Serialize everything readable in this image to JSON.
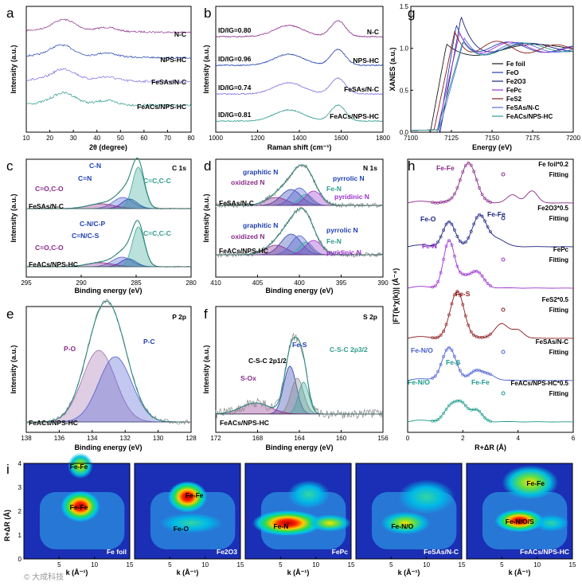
{
  "watermark": "© 大成科技",
  "colors": {
    "teal": "#2e9c8e",
    "blue": "#1f3fb0",
    "purple": "#8a2b8a",
    "violet": "#9b30d0",
    "darkred": "#8b1a1a",
    "navy": "#1a237e",
    "cyan": "#0a9a9a",
    "gray": "#777777"
  },
  "chart_data": [
    {
      "panel": "a",
      "type": "line",
      "xlabel": "2θ (degree)",
      "ylabel": "Intensity (a.u.)",
      "xlim": [
        10,
        80
      ],
      "xticks": [
        10,
        20,
        30,
        40,
        50,
        60,
        70,
        80
      ],
      "series": [
        {
          "name": "N-C",
          "color": "#8a2b8a",
          "offset": 3.0,
          "peak": 26,
          "noise": 0.07
        },
        {
          "name": "NPS-HC",
          "color": "#1f3fb0",
          "offset": 2.1,
          "peak": 25,
          "noise": 0.07
        },
        {
          "name": "Fe_SAs/N-C",
          "color": "#7a6ee0",
          "offset": 1.1,
          "peak": 26,
          "noise": 0.1
        },
        {
          "name": "Fe_ACs/NPS-HC",
          "color": "#2e9c8e",
          "offset": 0.2,
          "peak": 26,
          "noise": 0.1
        }
      ],
      "labels": [
        "N-C",
        "NPS-HC",
        "FeSAs/N-C",
        "FeACs/NPS-HC"
      ]
    },
    {
      "panel": "b",
      "type": "line",
      "xlabel": "Raman shift (cm⁻¹)",
      "ylabel": "Intensity (a.u.)",
      "xlim": [
        1000,
        1800
      ],
      "xticks": [
        1000,
        1200,
        1400,
        1600,
        1800
      ],
      "series": [
        {
          "name": "N-C",
          "ratio": "ID/IG=0.80",
          "color": "#8a2b8a"
        },
        {
          "name": "NPS-HC",
          "ratio": "ID/IG=0.96",
          "color": "#1f3fb0"
        },
        {
          "name": "FeSAs/N-C",
          "ratio": "ID/IG=0.74",
          "color": "#7a6ee0"
        },
        {
          "name": "FeACs/NPS-HC",
          "ratio": "ID/IG=0.81",
          "color": "#2e9c8e"
        }
      ]
    },
    {
      "panel": "g",
      "type": "line",
      "xlabel": "Energy (eV)",
      "ylabel": "XANES (a.u.)",
      "xlim": [
        7100,
        7200
      ],
      "ylim": [
        0,
        1.5
      ],
      "xticks": [
        7100,
        7125,
        7150,
        7175,
        7200
      ],
      "yticks": [
        0.0,
        0.5,
        1.0,
        1.5
      ],
      "legend": [
        "Fe foil",
        "FeO",
        "Fe2O3",
        "FePc",
        "FeS2",
        "FeSAs/N-C",
        "FeACs/NPS-HC"
      ],
      "legend_colors": [
        "#1a1a1a",
        "#1f3fb0",
        "#1a237e",
        "#9b30d0",
        "#8b1a1a",
        "#5a6ee0",
        "#2e9c8e"
      ]
    },
    {
      "panel": "c",
      "type": "line",
      "title": "C 1s",
      "xlabel": "Binding energy (eV)",
      "ylabel": "Intensity (a.u.)",
      "xlim": [
        295,
        280
      ],
      "xticks": [
        295,
        290,
        285,
        280
      ],
      "top": {
        "sample": "FeSAs/N-C",
        "labels": [
          "C-N",
          "C=N",
          "C=O,C-O",
          "C=C,C-C"
        ]
      },
      "bottom": {
        "sample": "FeACs/NPS-HC",
        "labels": [
          "C-N/C-P",
          "C=N/C-S",
          "C=O,C-O",
          "C=C,C-C"
        ]
      }
    },
    {
      "panel": "d",
      "type": "line",
      "title": "N 1s",
      "xlabel": "Binding energy (eV)",
      "ylabel": "Intensity (a.u.)",
      "xlim": [
        410,
        390
      ],
      "xticks": [
        410,
        405,
        400,
        395,
        390
      ],
      "top": {
        "sample": "FeSAs/N-C",
        "labels": [
          "graphitic N",
          "oxidized N",
          "pyrrolic N",
          "Fe-N",
          "pyridinic N"
        ]
      },
      "bottom": {
        "sample": "FeACs/NPS-HC",
        "labels": [
          "graphitic N",
          "oxidized N",
          "pyrrolic N",
          "Fe-N",
          "pyridinic N"
        ]
      }
    },
    {
      "panel": "e",
      "type": "line",
      "title": "P 2p",
      "sample": "FeACs/NPS-HC",
      "xlabel": "Binding energy (eV)",
      "ylabel": "Intensity (a.u.)",
      "xlim": [
        138,
        128
      ],
      "xticks": [
        138,
        136,
        134,
        132,
        130,
        128
      ],
      "labels": [
        "P-O",
        "P-C"
      ],
      "peaks": [
        133.6,
        132.6
      ]
    },
    {
      "panel": "f",
      "type": "line",
      "title": "S 2p",
      "sample": "FeACs/NPS-HC",
      "xlabel": "Binding energy (eV)",
      "ylabel": "Intensity (a.u.)",
      "xlim": [
        172,
        156
      ],
      "xticks": [
        172,
        168,
        164,
        160,
        156
      ],
      "labels": [
        "Fe-S",
        "C-S-C 2p1/2",
        "C-S-C 2p3/2",
        "S-Ox"
      ],
      "peaks": [
        164.9,
        164.2,
        163.6,
        168.2
      ]
    },
    {
      "panel": "h",
      "type": "line",
      "xlabel": "R+ΔR (Å)",
      "ylabel": "|FT(k³χ(k))| (Å⁻⁴)",
      "xlim": [
        0,
        6
      ],
      "xticks": [
        0,
        2,
        4,
        6
      ],
      "series": [
        {
          "name": "Fe foil*0.2",
          "color": "#8a2b8a",
          "annotations": [
            "Fe-Fe"
          ]
        },
        {
          "name": "Fe2O3*0.5",
          "color": "#1a237e",
          "annotations": [
            "Fe-O",
            "Fe-Fe"
          ]
        },
        {
          "name": "FePc",
          "color": "#9b30d0",
          "annotations": [
            "Fe-N"
          ]
        },
        {
          "name": "FeS2*0.5",
          "color": "#8b1a1a",
          "annotations": [
            "Fe-S"
          ]
        },
        {
          "name": "FeSAs/N-C",
          "color": "#4a5ed0",
          "annotations": [
            "Fe-N/O"
          ]
        },
        {
          "name": "FeACs/NPS-HC*0.5",
          "color": "#1a9a8a",
          "annotations": [
            "Fe-S",
            "Fe-N/O",
            "Fe-Fe"
          ]
        }
      ],
      "fitting_label": "Fitting"
    },
    {
      "panel": "i",
      "type": "heatmap",
      "xlabel": "k (Å⁻¹)",
      "ylabel": "R+ΔR (Å)",
      "xlim": [
        0,
        15
      ],
      "ylim": [
        0,
        4
      ],
      "maps": [
        {
          "name": "Fe foil",
          "features": [
            "Fe-Fe",
            "Fe-Fe"
          ]
        },
        {
          "name": "Fe2O3",
          "features": [
            "Fe-Fe",
            "Fe-O"
          ]
        },
        {
          "name": "FePc",
          "features": [
            "Fe-N"
          ]
        },
        {
          "name": "FeSAs/N-C",
          "features": [
            "Fe-N/O"
          ]
        },
        {
          "name": "FeACs/NPS-HC",
          "features": [
            "Fe-Fe",
            "Fe-N/O/S"
          ]
        }
      ]
    }
  ]
}
